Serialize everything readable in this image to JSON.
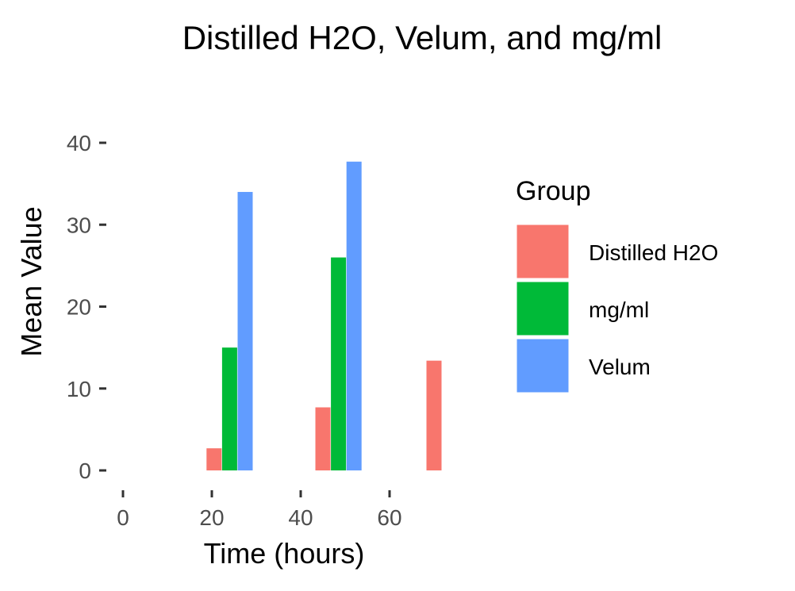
{
  "chart_data": {
    "type": "bar",
    "title": "Distilled H2O, Velum, and mg/ml",
    "xlabel": "Time (hours)",
    "ylabel": "Mean Value",
    "xlim": [
      0,
      70
    ],
    "ylim": [
      0,
      40
    ],
    "x_ticks": [
      "0",
      "20",
      "40",
      "60"
    ],
    "y_ticks": [
      "0",
      "10",
      "20",
      "30",
      "40"
    ],
    "grid": false,
    "legend": {
      "title": "Group",
      "position": "right",
      "entries": [
        "Distilled H2O",
        "mg/ml",
        "Velum"
      ]
    },
    "series": [
      {
        "name": "Distilled H2O",
        "color": "#F8766D",
        "points": [
          {
            "x": 20.5,
            "y": 2.7
          },
          {
            "x": 45,
            "y": 7.7
          },
          {
            "x": 70,
            "y": 13.4
          }
        ]
      },
      {
        "name": "mg/ml",
        "color": "#00BA38",
        "points": [
          {
            "x": 24,
            "y": 15
          },
          {
            "x": 48.5,
            "y": 26
          }
        ]
      },
      {
        "name": "Velum",
        "color": "#619CFF",
        "points": [
          {
            "x": 27.5,
            "y": 34
          },
          {
            "x": 52,
            "y": 37.7
          }
        ]
      }
    ]
  }
}
